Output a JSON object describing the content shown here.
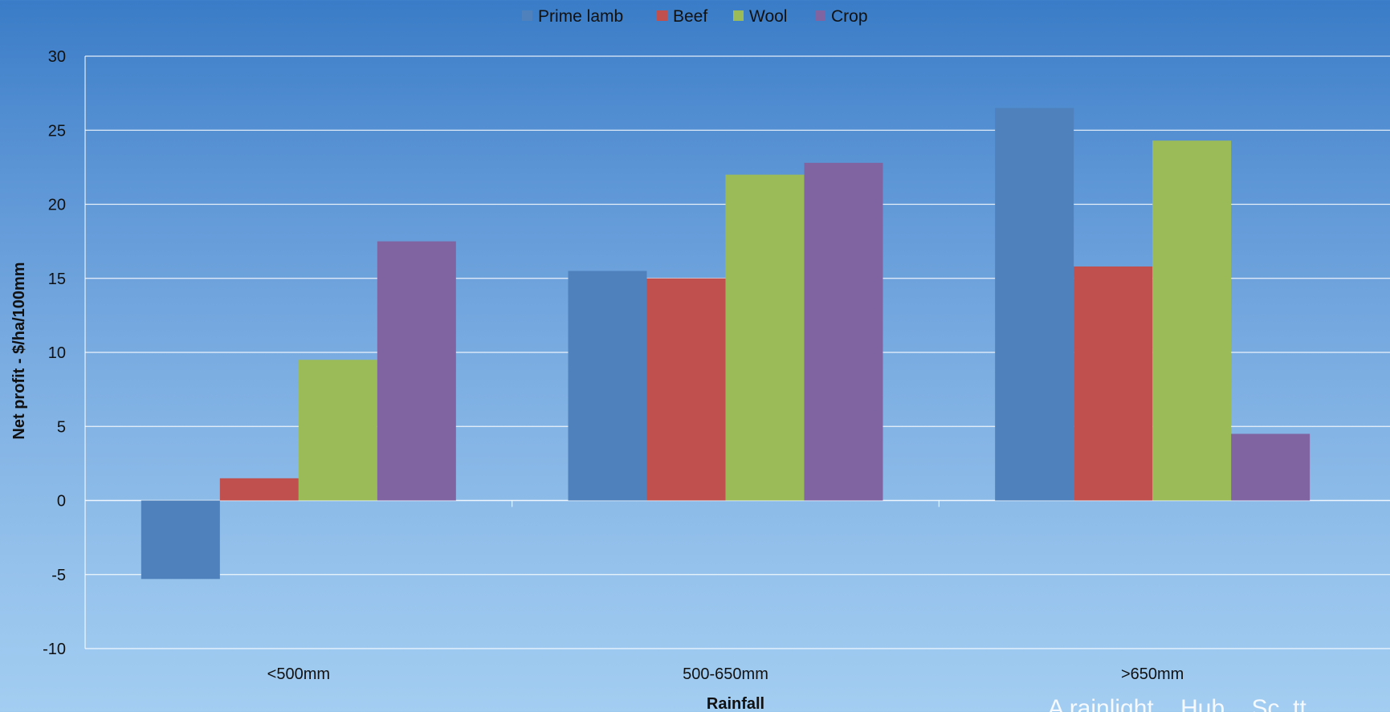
{
  "chart_data": {
    "type": "bar",
    "title": "",
    "xlabel": "Rainfall",
    "ylabel": "Net profit - $/ha/100mm",
    "categories": [
      "<500mm",
      "500-650mm",
      ">650mm"
    ],
    "series": [
      {
        "name": "Prime lamb",
        "color": "#4f81bd",
        "values": [
          -5.3,
          15.5,
          26.5
        ]
      },
      {
        "name": "Beef",
        "color": "#c0504d",
        "values": [
          1.5,
          15.0,
          15.8
        ]
      },
      {
        "name": "Wool",
        "color": "#9bbb59",
        "values": [
          9.5,
          22.0,
          24.3
        ]
      },
      {
        "name": "Crop",
        "color": "#8064a2",
        "values": [
          17.5,
          22.8,
          4.5
        ]
      }
    ],
    "ylim": [
      -10,
      30
    ],
    "yticks": [
      "-10",
      "-5",
      "0",
      "5",
      "10",
      "15",
      "20",
      "25",
      "30"
    ],
    "grid": true,
    "legend_position": "top-center"
  },
  "watermark_text": "A rainlight... Hub... Sc..tt"
}
